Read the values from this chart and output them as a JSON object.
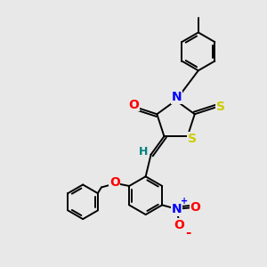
{
  "background_color": "#e8e8e8",
  "bond_color": "#000000",
  "atom_colors": {
    "N": "#0000ff",
    "O": "#ff0000",
    "S": "#cccc00",
    "C": "#000000",
    "H": "#008080"
  },
  "figsize": [
    3.0,
    3.0
  ],
  "dpi": 100,
  "lw": 1.4
}
